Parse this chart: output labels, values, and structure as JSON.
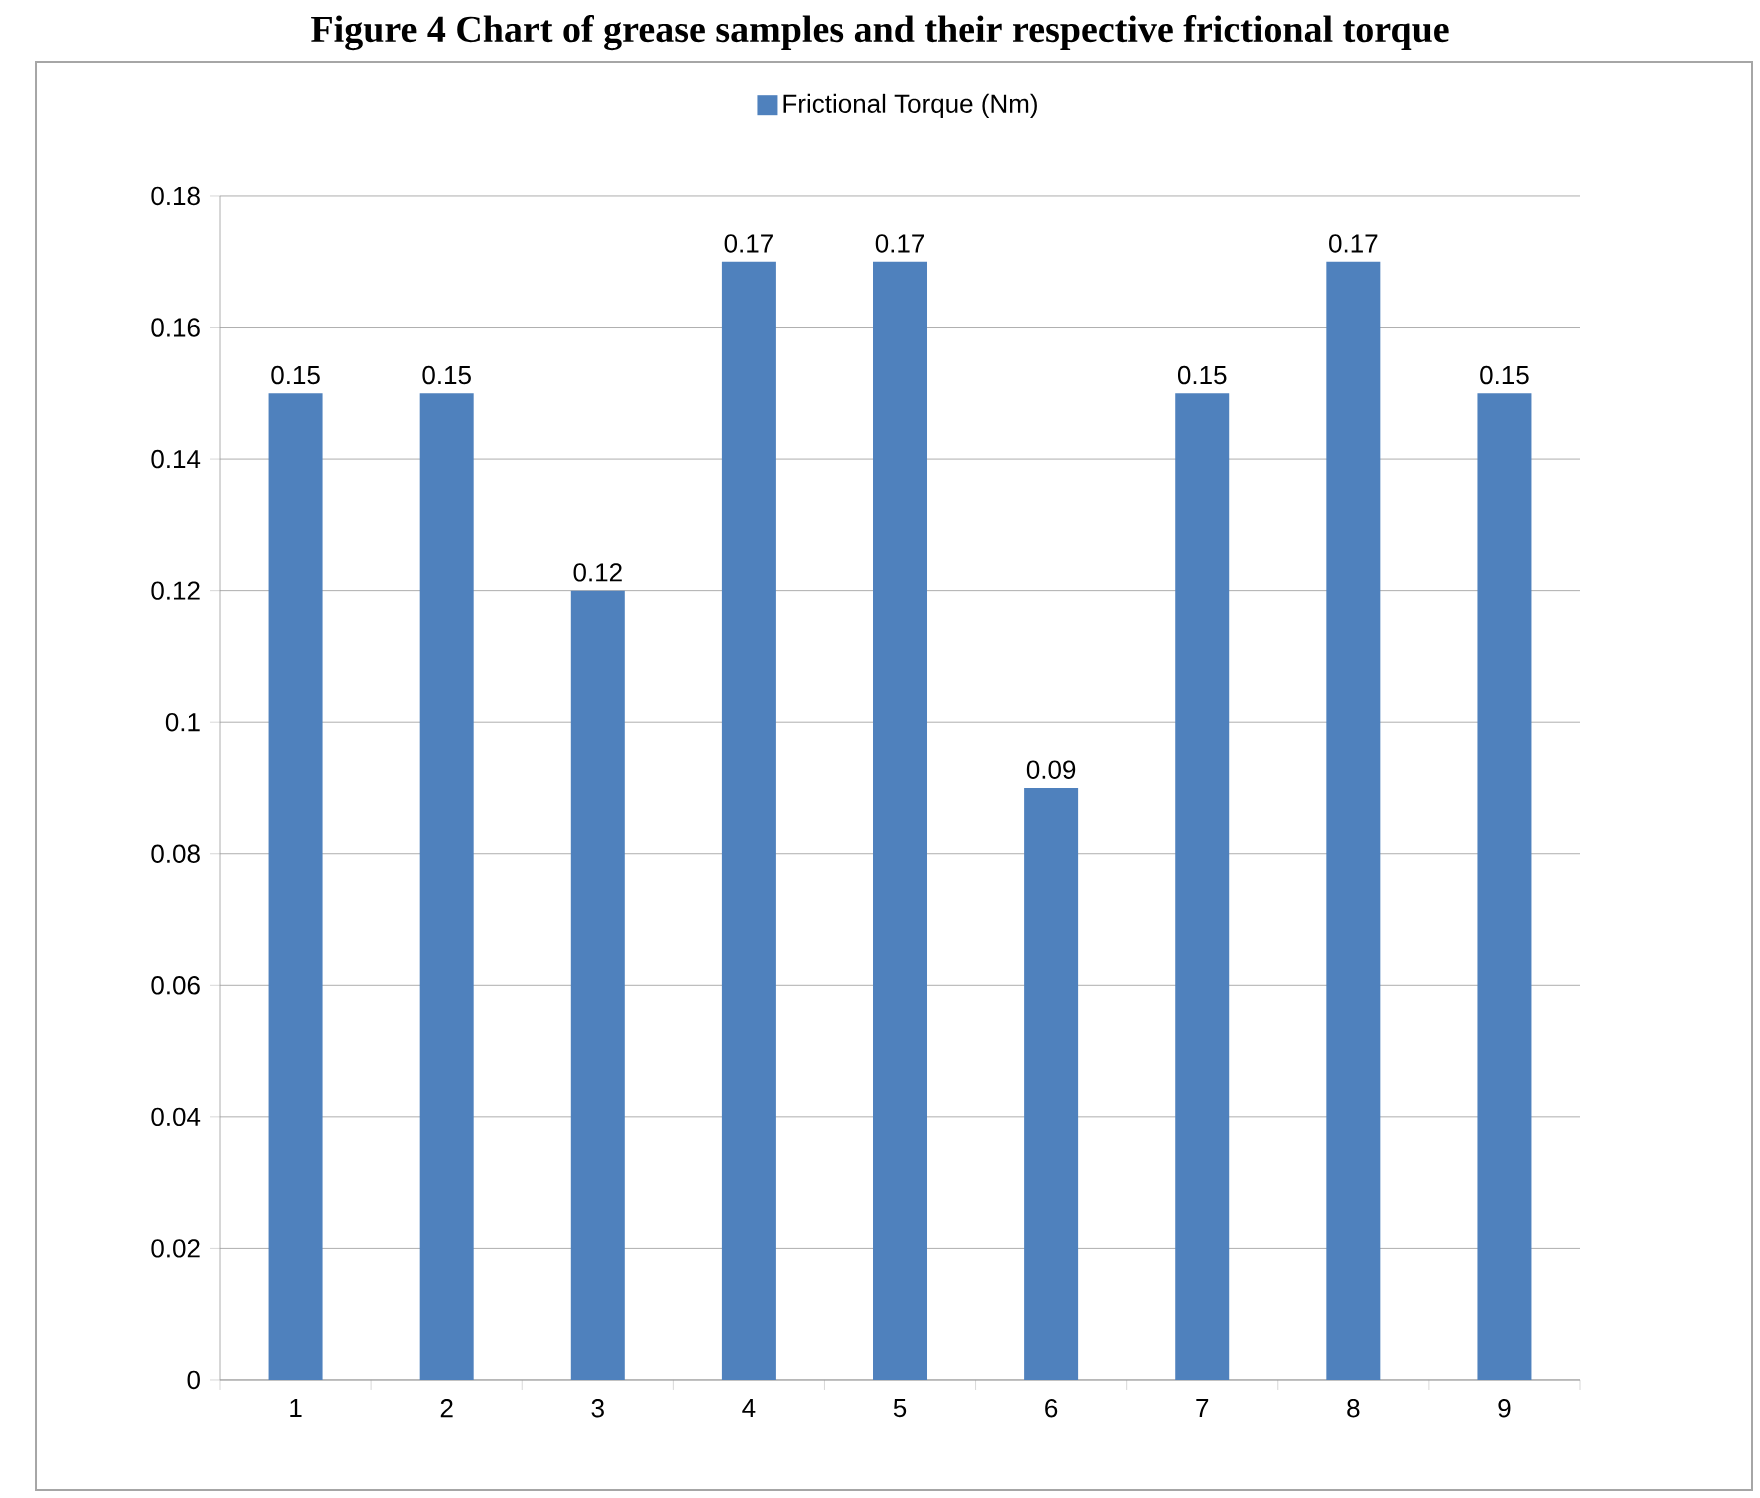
{
  "chart_data": {
    "type": "bar",
    "title": "Figure 4 Chart of grease samples and their respective frictional torque",
    "categories": [
      "1",
      "2",
      "3",
      "4",
      "5",
      "6",
      "7",
      "8",
      "9"
    ],
    "series": [
      {
        "name": "Frictional Torque (Nm)",
        "color": "#4f81bd",
        "values": [
          0.15,
          0.15,
          0.12,
          0.17,
          0.17,
          0.09,
          0.15,
          0.17,
          0.15
        ]
      }
    ],
    "ylim": [
      0,
      0.18
    ],
    "yticks": [
      0,
      0.02,
      0.04,
      0.06,
      0.08,
      0.1,
      0.12,
      0.14,
      0.16,
      0.18
    ],
    "grid": "y",
    "legend": "top",
    "data_labels": true
  }
}
